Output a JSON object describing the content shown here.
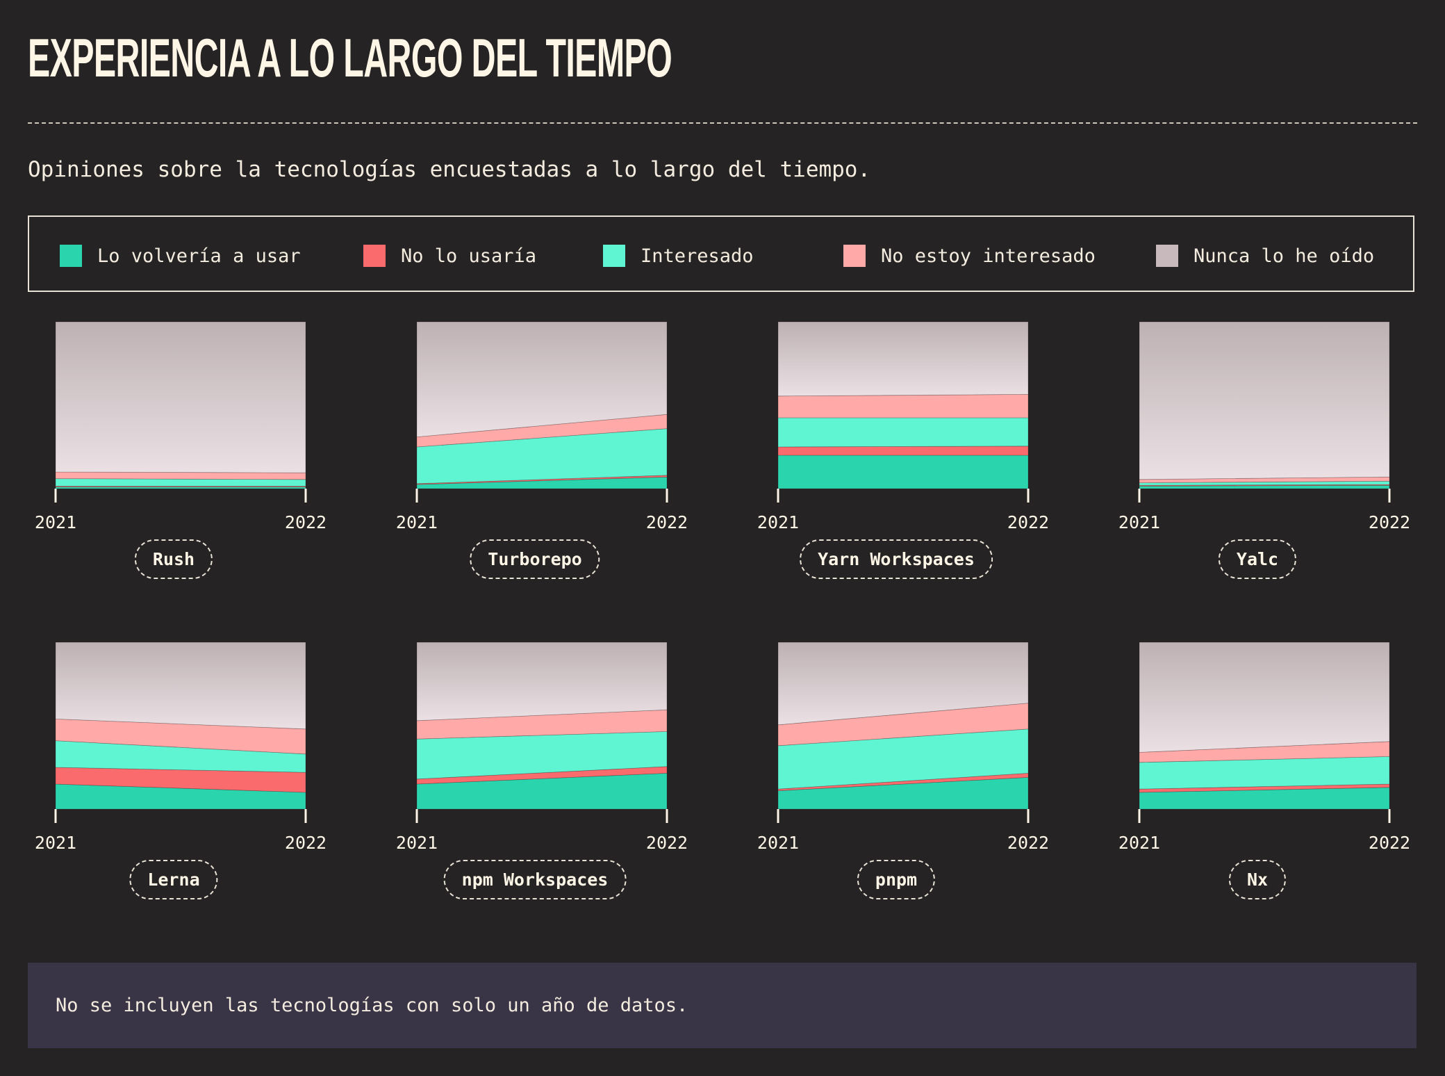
{
  "title": "EXPERIENCIA A LO LARGO DEL TIEMPO",
  "subtitle": "Opiniones sobre la tecnologías encuestadas a lo largo del tiempo.",
  "note": "No se incluyen las tecnologías con solo un año de datos.",
  "legend": [
    {
      "label": "Lo volvería a usar",
      "color": "#2ad5ae"
    },
    {
      "label": "No lo usaría",
      "color": "#fa6b6e"
    },
    {
      "label": "Interesado",
      "color": "#5ff5d2"
    },
    {
      "label": "No estoy interesado",
      "color": "#ffaaa8"
    },
    {
      "label": "Nunca lo he oído",
      "color": "#c8b9bc"
    }
  ],
  "chart_data": {
    "type": "area",
    "stacked": true,
    "normalized": true,
    "x": [
      "2021",
      "2022"
    ],
    "series_names": [
      "Lo volvería a usar",
      "No lo usaría",
      "Interesado",
      "No estoy interesado",
      "Nunca lo he oído"
    ],
    "charts": [
      {
        "name": "Rush",
        "series": [
          [
            1,
            1
          ],
          [
            0.5,
            0.5
          ],
          [
            4.5,
            4
          ],
          [
            4,
            4
          ],
          [
            90,
            90.5
          ]
        ]
      },
      {
        "name": "Turborepo",
        "series": [
          [
            2.5,
            7
          ],
          [
            0.5,
            1
          ],
          [
            22,
            28
          ],
          [
            6,
            8.5
          ],
          [
            69,
            55.5
          ]
        ]
      },
      {
        "name": "Yarn Workspaces",
        "series": [
          [
            20,
            20
          ],
          [
            5,
            5.5
          ],
          [
            17.5,
            17
          ],
          [
            13,
            14
          ],
          [
            44.5,
            43.5
          ]
        ]
      },
      {
        "name": "Yalc",
        "series": [
          [
            1.5,
            2
          ],
          [
            0.5,
            0.5
          ],
          [
            1.5,
            2
          ],
          [
            2,
            2.5
          ],
          [
            94.5,
            93
          ]
        ]
      },
      {
        "name": "Lerna",
        "series": [
          [
            15,
            10
          ],
          [
            10,
            12
          ],
          [
            16,
            11
          ],
          [
            13,
            15
          ],
          [
            46,
            52
          ]
        ]
      },
      {
        "name": "npm Workspaces",
        "series": [
          [
            15,
            21.5
          ],
          [
            3,
            4
          ],
          [
            24,
            21
          ],
          [
            11,
            13
          ],
          [
            47,
            40.5
          ]
        ]
      },
      {
        "name": "pnpm",
        "series": [
          [
            11,
            19
          ],
          [
            1,
            2.5
          ],
          [
            26,
            26.5
          ],
          [
            12.5,
            15.5
          ],
          [
            49.5,
            36.5
          ]
        ]
      },
      {
        "name": "Nx",
        "series": [
          [
            10,
            13
          ],
          [
            2,
            2
          ],
          [
            16,
            16.5
          ],
          [
            6,
            9
          ],
          [
            66,
            59.5
          ]
        ]
      }
    ]
  }
}
